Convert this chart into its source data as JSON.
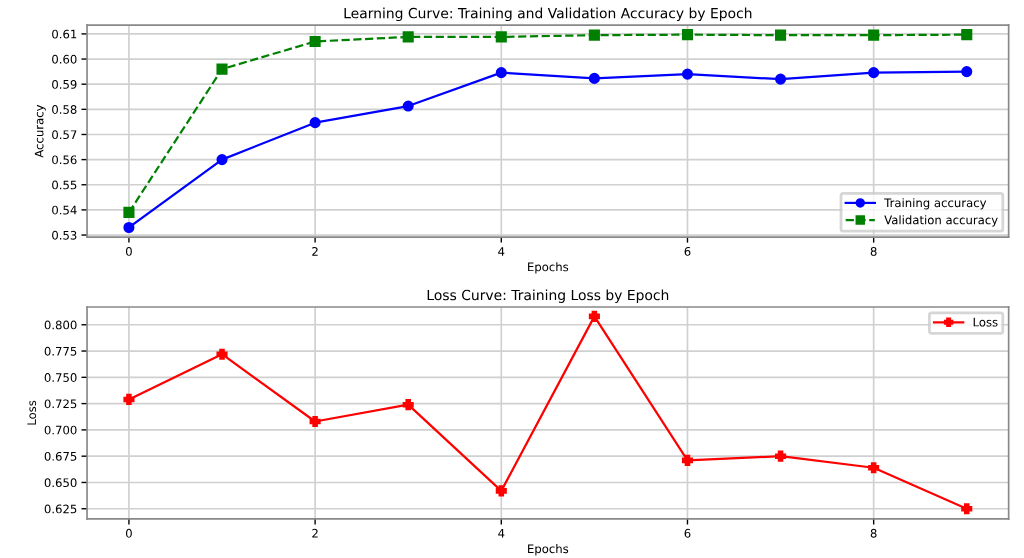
{
  "chart_data": [
    {
      "type": "line",
      "title": "Learning Curve: Training and Validation Accuracy by Epoch",
      "xlabel": "Epochs",
      "ylabel": "Accuracy",
      "x": [
        0,
        1,
        2,
        3,
        4,
        5,
        6,
        7,
        8,
        9
      ],
      "series": [
        {
          "name": "Training accuracy",
          "color": "#0000ff",
          "marker": "circle",
          "line_style": "solid",
          "values": [
            0.533,
            0.56,
            0.5747,
            0.5813,
            0.5946,
            0.5923,
            0.594,
            0.592,
            0.5946,
            0.595
          ]
        },
        {
          "name": "Validation accuracy",
          "color": "#008000",
          "marker": "square",
          "line_style": "dashed",
          "values": [
            0.539,
            0.596,
            0.607,
            0.6088,
            0.6088,
            0.6095,
            0.6097,
            0.6095,
            0.6095,
            0.6097
          ]
        }
      ],
      "xlim": [
        -0.45,
        9.45
      ],
      "xticks": [
        0,
        2,
        4,
        6,
        8
      ],
      "ylim": [
        0.5292,
        0.6135
      ],
      "yticks": [
        {
          "value": 0.53,
          "label": "0.53"
        },
        {
          "value": 0.54,
          "label": "0.54"
        },
        {
          "value": 0.55,
          "label": "0.55"
        },
        {
          "value": 0.56,
          "label": "0.56"
        },
        {
          "value": 0.57,
          "label": "0.57"
        },
        {
          "value": 0.58,
          "label": "0.58"
        },
        {
          "value": 0.59,
          "label": "0.59"
        },
        {
          "value": 0.6,
          "label": "0.60"
        },
        {
          "value": 0.61,
          "label": "0.61"
        }
      ],
      "grid": true,
      "legend": "bottom right"
    },
    {
      "type": "line",
      "title": "Loss Curve: Training Loss by Epoch",
      "xlabel": "Epochs",
      "ylabel": "Loss",
      "x": [
        0,
        1,
        2,
        3,
        4,
        5,
        6,
        7,
        8,
        9
      ],
      "series": [
        {
          "name": "Loss",
          "color": "#ff0000",
          "marker": "cross",
          "line_style": "solid",
          "values": [
            0.729,
            0.772,
            0.708,
            0.724,
            0.642,
            0.808,
            0.671,
            0.675,
            0.664,
            0.625
          ]
        }
      ],
      "xlim": [
        -0.45,
        9.45
      ],
      "xticks": [
        0,
        2,
        4,
        6,
        8
      ],
      "ylim": [
        0.6153,
        0.8169
      ],
      "yticks": [
        {
          "value": 0.625,
          "label": "0.625"
        },
        {
          "value": 0.65,
          "label": "0.650"
        },
        {
          "value": 0.675,
          "label": "0.675"
        },
        {
          "value": 0.7,
          "label": "0.700"
        },
        {
          "value": 0.725,
          "label": "0.725"
        },
        {
          "value": 0.75,
          "label": "0.750"
        },
        {
          "value": 0.775,
          "label": "0.775"
        },
        {
          "value": 0.8,
          "label": "0.800"
        }
      ],
      "grid": true,
      "legend": "top right"
    }
  ]
}
